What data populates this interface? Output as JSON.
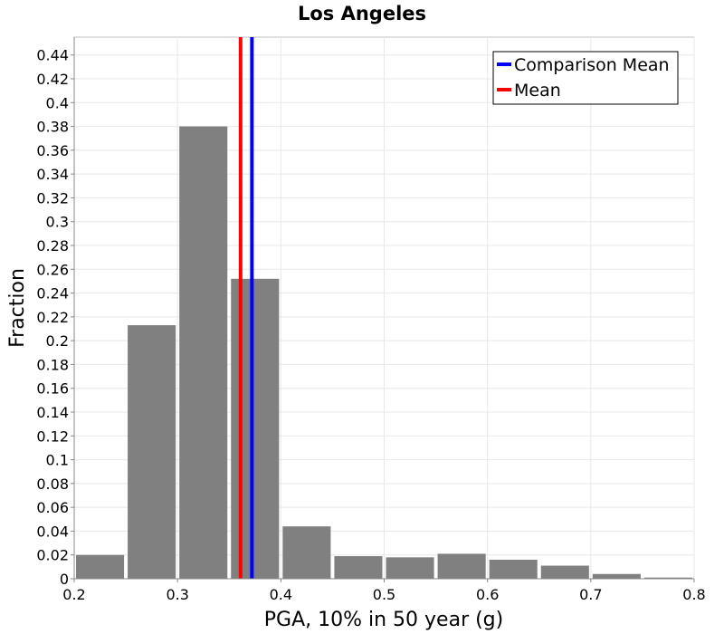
{
  "chart_data": {
    "type": "bar",
    "title": "Los Angeles",
    "xlabel": "PGA, 10% in 50 year (g)",
    "ylabel": "Fraction",
    "xlim": [
      0.2,
      0.8
    ],
    "ylim": [
      0,
      0.455
    ],
    "x_ticks": [
      "0.2",
      "0.3",
      "0.4",
      "0.5",
      "0.6",
      "0.7",
      "0.8"
    ],
    "x_tick_values": [
      0.2,
      0.3,
      0.4,
      0.5,
      0.6,
      0.7,
      0.8
    ],
    "y_ticks": [
      "0",
      "0.02",
      "0.04",
      "0.06",
      "0.08",
      "0.1",
      "0.12",
      "0.14",
      "0.16",
      "0.18",
      "0.2",
      "0.22",
      "0.24",
      "0.26",
      "0.28",
      "0.3",
      "0.32",
      "0.34",
      "0.36",
      "0.38",
      "0.4",
      "0.42",
      "0.44"
    ],
    "y_tick_values": [
      0,
      0.02,
      0.04,
      0.06,
      0.08,
      0.1,
      0.12,
      0.14,
      0.16,
      0.18,
      0.2,
      0.22,
      0.24,
      0.26,
      0.28,
      0.3,
      0.32,
      0.34,
      0.36,
      0.38,
      0.4,
      0.42,
      0.44
    ],
    "bin_width": 0.05,
    "bins": [
      {
        "start": 0.2,
        "end": 0.25,
        "value": 0.02
      },
      {
        "start": 0.25,
        "end": 0.3,
        "value": 0.213
      },
      {
        "start": 0.3,
        "end": 0.35,
        "value": 0.38
      },
      {
        "start": 0.35,
        "end": 0.4,
        "value": 0.252
      },
      {
        "start": 0.4,
        "end": 0.45,
        "value": 0.044
      },
      {
        "start": 0.45,
        "end": 0.5,
        "value": 0.019
      },
      {
        "start": 0.5,
        "end": 0.55,
        "value": 0.018
      },
      {
        "start": 0.55,
        "end": 0.6,
        "value": 0.021
      },
      {
        "start": 0.6,
        "end": 0.65,
        "value": 0.016
      },
      {
        "start": 0.65,
        "end": 0.7,
        "value": 0.011
      },
      {
        "start": 0.7,
        "end": 0.75,
        "value": 0.004
      },
      {
        "start": 0.75,
        "end": 0.8,
        "value": 0.001
      }
    ],
    "bar_color": "#808080",
    "vlines": [
      {
        "name": "Comparison Mean",
        "x": 0.372,
        "color": "#0000ff"
      },
      {
        "name": "Mean",
        "x": 0.361,
        "color": "#ff0000"
      }
    ],
    "grid": true,
    "legend_position": "top-right"
  }
}
